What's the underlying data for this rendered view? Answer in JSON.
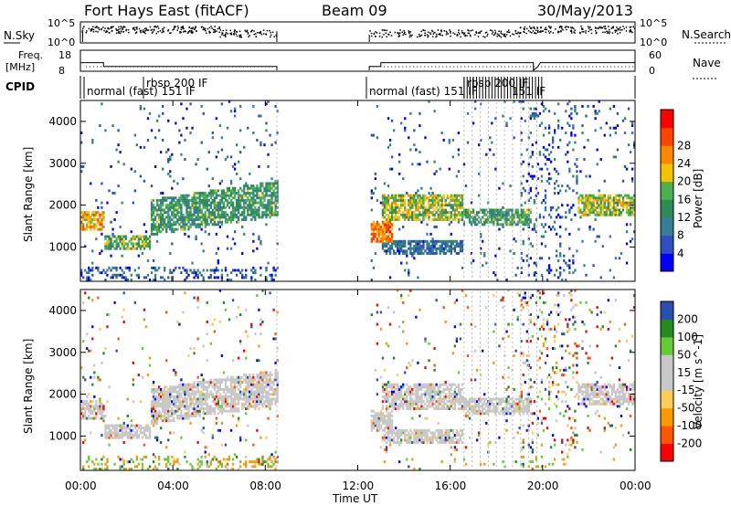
{
  "header": {
    "station": "Fort Hays East (fitACF)",
    "beam": "Beam 09",
    "date": "30/May/2013"
  },
  "left_labels": {
    "nsky": "N.Sky",
    "freq_line1": "Freq.",
    "freq_line2": "[MHz]",
    "cpid": "CPID"
  },
  "right_labels": {
    "nsearch": "N.Search",
    "nave": "Nave"
  },
  "cpid_annotations": {
    "seg1": "normal (fast) 151 IF",
    "seg2": "rbsp 200 IF",
    "seg3": "normal (fast) 151 IF",
    "seg4": "rbsp 200 IF"
  },
  "xlabel": "Time UT",
  "colors": {
    "power_scale": [
      "#0000ff",
      "#2e4fc4",
      "#3a7d99",
      "#2e8b57",
      "#4caf50",
      "#f5c400",
      "#ff8800",
      "#ff4400",
      "#ff0000"
    ],
    "velocity_scale": [
      "#ff0000",
      "#ff5500",
      "#ff9900",
      "#ffcc55",
      "#c8c8c8",
      "#c8c8c8",
      "#66cc33",
      "#228b22",
      "#2a4fb0",
      "#0000ff"
    ]
  },
  "chart_data": [
    {
      "type": "scatter",
      "panel": "noise",
      "ylabel_left": "N.Sky",
      "ylabel_right": "N.Search",
      "y_scale": "log",
      "yticks": [
        "10^5",
        "10^0"
      ],
      "xlim": [
        "00:00",
        "24:00"
      ]
    },
    {
      "type": "line",
      "panel": "frequency_nave",
      "ylabel_left": "Freq. [MHz]",
      "yticks_left": [
        18,
        8
      ],
      "ylabel_right": "Nave",
      "yticks_right": [
        60,
        0
      ],
      "series": [
        {
          "name": "Freq.",
          "x": [
            "00:00",
            "01:00",
            "08:30",
            "12:30",
            "13:00",
            "19:45",
            "24:00"
          ],
          "values": [
            12,
            10,
            10,
            10,
            12,
            10,
            12
          ]
        }
      ]
    },
    {
      "type": "heatmap",
      "panel": "power",
      "xlabel": "Time UT",
      "ylabel": "Slant Range [km]",
      "xticks": [
        "00:00",
        "04:00",
        "08:00",
        "12:00",
        "16:00",
        "20:00",
        "00:00"
      ],
      "yticks": [
        1000,
        2000,
        3000,
        4000
      ],
      "ylim": [
        180,
        4500
      ],
      "colorbar_label": "Power [dB]",
      "colorbar_ticks": [
        4,
        8,
        12,
        16,
        20,
        24,
        28
      ],
      "colorbar_range": [
        0,
        30
      ],
      "data_gap": [
        "08:30",
        "12:30"
      ],
      "echo_bands": [
        {
          "t": [
            0.0,
            1.0
          ],
          "range": [
            1450,
            1950
          ],
          "level": 20
        },
        {
          "t": [
            1.0,
            3.0
          ],
          "range": [
            1000,
            1350
          ],
          "level": 14
        },
        {
          "t": [
            3.0,
            8.5
          ],
          "range": [
            1350,
            2200
          ],
          "level": 12
        },
        {
          "t": [
            12.5,
            13.5
          ],
          "range": [
            1200,
            1700
          ],
          "level": 22
        },
        {
          "t": [
            13.0,
            16.5
          ],
          "range": [
            1700,
            2300
          ],
          "level": 16
        },
        {
          "t": [
            13.0,
            16.5
          ],
          "range": [
            900,
            1250
          ],
          "level": 8
        },
        {
          "t": [
            16.5,
            19.5
          ],
          "range": [
            1600,
            2000
          ],
          "level": 12
        },
        {
          "t": [
            21.5,
            24.0
          ],
          "range": [
            1800,
            2300
          ],
          "level": 16
        }
      ]
    },
    {
      "type": "heatmap",
      "panel": "velocity",
      "xlabel": "Time UT",
      "ylabel": "Slant Range [km]",
      "xticks": [
        "00:00",
        "04:00",
        "08:00",
        "12:00",
        "16:00",
        "20:00",
        "00:00"
      ],
      "yticks": [
        1000,
        2000,
        3000,
        4000
      ],
      "ylim": [
        180,
        4500
      ],
      "colorbar_label": "Velocity [m s^-1]",
      "colorbar_ticks": [
        200,
        100,
        50,
        15,
        -15,
        -50,
        -100,
        -200
      ],
      "colorbar_range": [
        -250,
        250
      ],
      "data_gap": [
        "08:30",
        "12:30"
      ]
    }
  ]
}
